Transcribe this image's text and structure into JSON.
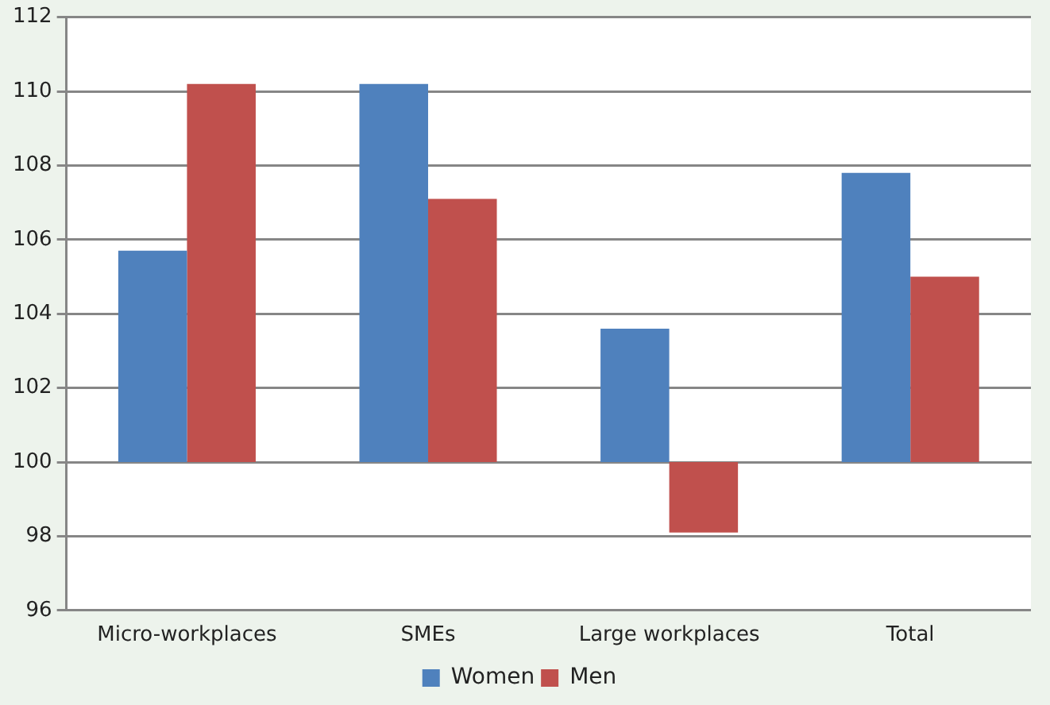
{
  "chart_data": {
    "type": "bar",
    "categories": [
      "Micro-workplaces",
      "SMEs",
      "Large workplaces",
      "Total"
    ],
    "series": [
      {
        "name": "Women",
        "color": "#4f81bd",
        "base": [
          100,
          100,
          100,
          100
        ],
        "values": [
          5.7,
          10.2,
          3.6,
          7.8
        ]
      },
      {
        "name": "Men",
        "color": "#c0504d",
        "base": [
          100,
          100,
          100,
          100
        ],
        "values": [
          10.2,
          7.1,
          -1.9,
          5.0
        ]
      }
    ],
    "ylim": [
      96,
      112
    ],
    "yticks": [
      96,
      98,
      100,
      102,
      104,
      106,
      108,
      110,
      112
    ],
    "grid": "y",
    "legend": "bottom"
  }
}
